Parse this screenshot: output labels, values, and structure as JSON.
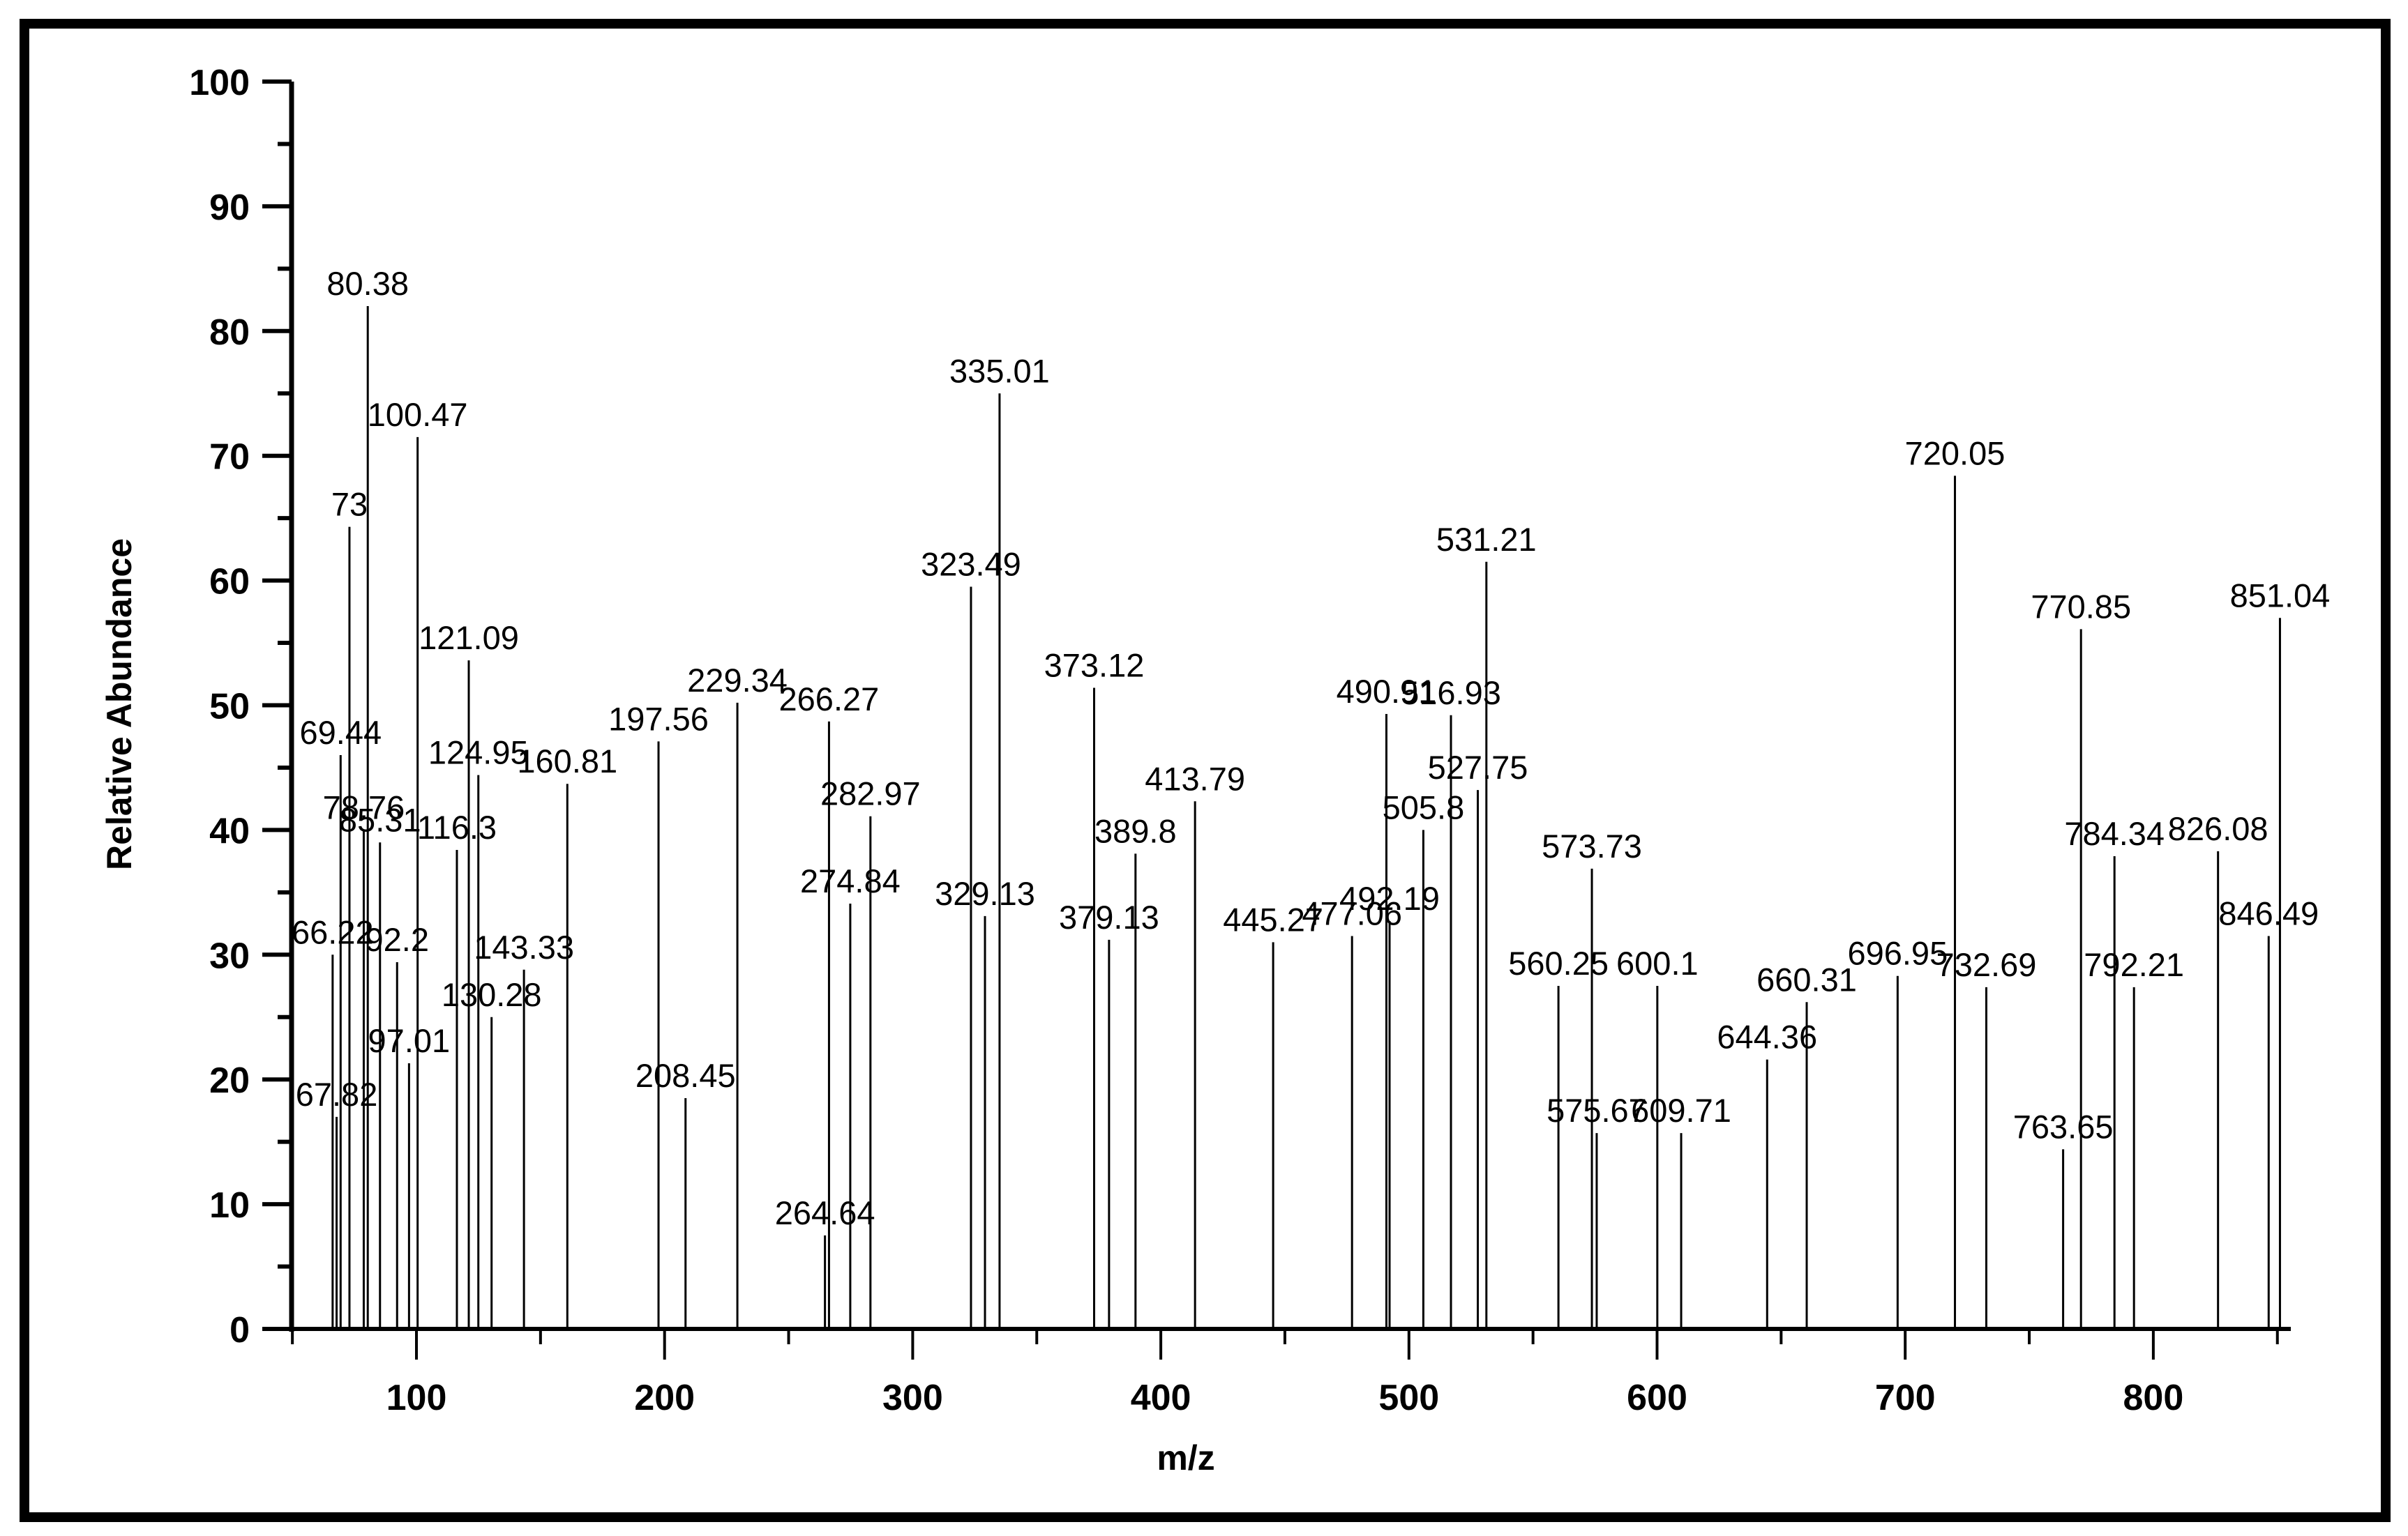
{
  "chart_data": {
    "type": "bar",
    "subtype": "mass-spectrum-stick",
    "title": "",
    "xlabel": "m/z",
    "ylabel": "Relative Abundance",
    "xlim": [
      50,
      856
    ],
    "ylim": [
      0,
      100
    ],
    "x_ticks": [
      100,
      200,
      300,
      400,
      500,
      600,
      700,
      800
    ],
    "x_minor_ticks": [
      50,
      150,
      250,
      350,
      450,
      550,
      650,
      750,
      850
    ],
    "y_ticks": [
      0,
      10,
      20,
      30,
      40,
      50,
      60,
      70,
      80,
      90,
      100
    ],
    "y_minor_ticks": [
      5,
      15,
      25,
      35,
      45,
      55,
      65,
      75,
      85,
      95
    ],
    "grid": false,
    "legend": null,
    "peaks": [
      {
        "mz": 66.22,
        "label": "66.22",
        "intensity": 30.0
      },
      {
        "mz": 67.82,
        "label": "67.82",
        "intensity": 17.0
      },
      {
        "mz": 69.44,
        "label": "69.44",
        "intensity": 46.0
      },
      {
        "mz": 73,
        "label": "73",
        "intensity": 64.3
      },
      {
        "mz": 78.76,
        "label": "78.76",
        "intensity": 40.0
      },
      {
        "mz": 80.38,
        "label": "80.38",
        "intensity": 82.0
      },
      {
        "mz": 85.31,
        "label": "85.31",
        "intensity": 39.0
      },
      {
        "mz": 92.2,
        "label": "92.2",
        "intensity": 29.4
      },
      {
        "mz": 97.01,
        "label": "97.01",
        "intensity": 21.3
      },
      {
        "mz": 100.47,
        "label": "100.47",
        "intensity": 71.5
      },
      {
        "mz": 116.3,
        "label": "116.3",
        "intensity": 38.4
      },
      {
        "mz": 121.09,
        "label": "121.09",
        "intensity": 53.6
      },
      {
        "mz": 124.95,
        "label": "124.95",
        "intensity": 44.4
      },
      {
        "mz": 130.28,
        "label": "130.28",
        "intensity": 25.0
      },
      {
        "mz": 143.33,
        "label": "143.33",
        "intensity": 28.8
      },
      {
        "mz": 160.81,
        "label": "160.81",
        "intensity": 43.7
      },
      {
        "mz": 197.56,
        "label": "197.56",
        "intensity": 47.1
      },
      {
        "mz": 208.45,
        "label": "208.45",
        "intensity": 18.5
      },
      {
        "mz": 229.34,
        "label": "229.34",
        "intensity": 50.2
      },
      {
        "mz": 264.64,
        "label": "264.64",
        "intensity": 7.5
      },
      {
        "mz": 266.27,
        "label": "266.27",
        "intensity": 48.7
      },
      {
        "mz": 274.84,
        "label": "274.84",
        "intensity": 34.1
      },
      {
        "mz": 282.97,
        "label": "282.97",
        "intensity": 41.1
      },
      {
        "mz": 323.49,
        "label": "323.49",
        "intensity": 59.5
      },
      {
        "mz": 329.13,
        "label": "329.13",
        "intensity": 33.1
      },
      {
        "mz": 335.01,
        "label": "335.01",
        "intensity": 75.0
      },
      {
        "mz": 373.12,
        "label": "373.12",
        "intensity": 51.4
      },
      {
        "mz": 379.13,
        "label": "379.13",
        "intensity": 31.2
      },
      {
        "mz": 389.8,
        "label": "389.8",
        "intensity": 38.1
      },
      {
        "mz": 413.79,
        "label": "413.79",
        "intensity": 42.3
      },
      {
        "mz": 445.27,
        "label": "445.27",
        "intensity": 31.0
      },
      {
        "mz": 477.06,
        "label": "477.06",
        "intensity": 31.5
      },
      {
        "mz": 490.91,
        "label": "490.91",
        "intensity": 49.3
      },
      {
        "mz": 492.19,
        "label": "492.19",
        "intensity": 32.7
      },
      {
        "mz": 505.8,
        "label": "505.8",
        "intensity": 40.0
      },
      {
        "mz": 516.93,
        "label": "516.93",
        "intensity": 49.2
      },
      {
        "mz": 527.75,
        "label": "527.75",
        "intensity": 43.2
      },
      {
        "mz": 531.21,
        "label": "531.21",
        "intensity": 61.5
      },
      {
        "mz": 560.25,
        "label": "560.25",
        "intensity": 27.5
      },
      {
        "mz": 573.73,
        "label": "573.73",
        "intensity": 36.9
      },
      {
        "mz": 575.67,
        "label": "575.67",
        "intensity": 15.7
      },
      {
        "mz": 600.1,
        "label": "600.1",
        "intensity": 27.5
      },
      {
        "mz": 609.71,
        "label": "609.71",
        "intensity": 15.7
      },
      {
        "mz": 644.36,
        "label": "644.36",
        "intensity": 21.6
      },
      {
        "mz": 660.31,
        "label": "660.31",
        "intensity": 26.2
      },
      {
        "mz": 696.95,
        "label": "696.95",
        "intensity": 28.3
      },
      {
        "mz": 720.05,
        "label": "720.05",
        "intensity": 68.4
      },
      {
        "mz": 732.69,
        "label": "732.69",
        "intensity": 27.4
      },
      {
        "mz": 763.65,
        "label": "763.65",
        "intensity": 14.4
      },
      {
        "mz": 770.85,
        "label": "770.85",
        "intensity": 56.1
      },
      {
        "mz": 784.34,
        "label": "784.34",
        "intensity": 37.9
      },
      {
        "mz": 792.21,
        "label": "792.21",
        "intensity": 27.4
      },
      {
        "mz": 826.08,
        "label": "826.08",
        "intensity": 38.3
      },
      {
        "mz": 846.49,
        "label": "846.49",
        "intensity": 31.5
      },
      {
        "mz": 851.04,
        "label": "851.04",
        "intensity": 57.0
      }
    ]
  },
  "colors": {
    "background": "#ffffff",
    "foreground": "#000000",
    "frame": "#000000"
  }
}
